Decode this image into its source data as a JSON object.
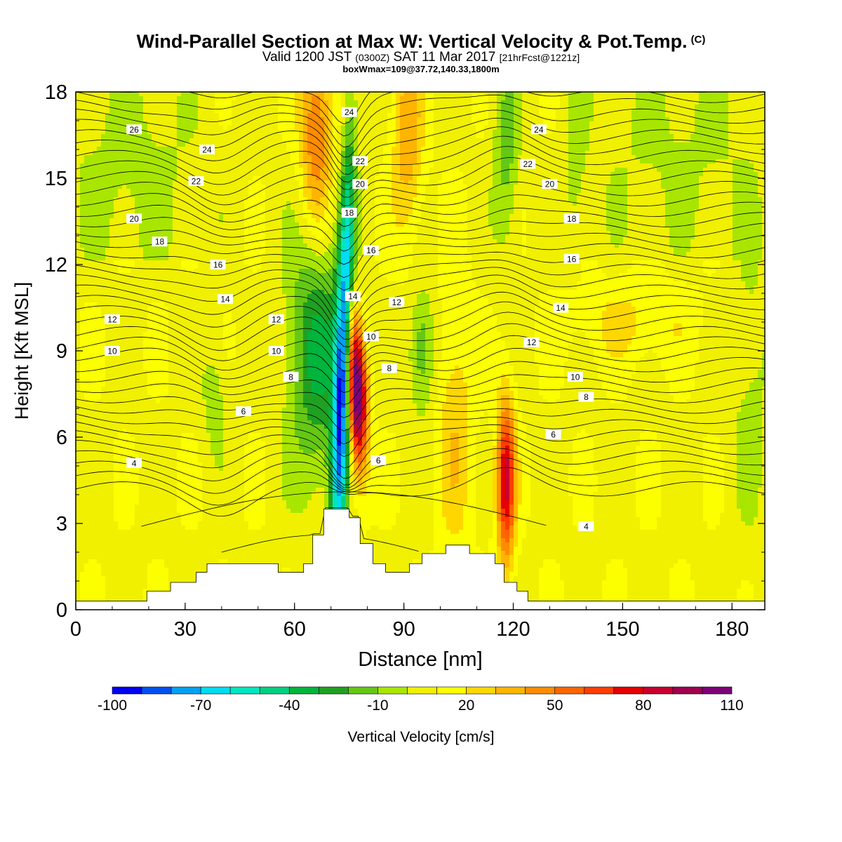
{
  "header": {
    "title": "Wind-Parallel Section at Max W: Vertical Velocity & Pot.Temp.",
    "copyright_mark": "(C)",
    "valid_prefix": "Valid 1200 JST",
    "valid_utc": "(0300Z)",
    "valid_date": "SAT 11 Mar 2017",
    "forecast_info": "[21hrFcst@1221z]",
    "box_info": "boxWmax=109@37.72,140.33,1800m"
  },
  "colorbar": {
    "label": "Vertical Velocity [cm/s]",
    "tick_labels": [
      "-100",
      "-70",
      "-40",
      "-10",
      "20",
      "50",
      "80",
      "110"
    ],
    "bins": [
      {
        "lo": -100,
        "hi": -90,
        "color": "#0000f0"
      },
      {
        "lo": -90,
        "hi": -80,
        "color": "#0050f0"
      },
      {
        "lo": -80,
        "hi": -70,
        "color": "#00a0f0"
      },
      {
        "lo": -70,
        "hi": -60,
        "color": "#00dcf0"
      },
      {
        "lo": -60,
        "hi": -50,
        "color": "#00e6c0"
      },
      {
        "lo": -50,
        "hi": -40,
        "color": "#00d080"
      },
      {
        "lo": -40,
        "hi": -30,
        "color": "#00b43c"
      },
      {
        "lo": -30,
        "hi": -20,
        "color": "#20a020"
      },
      {
        "lo": -20,
        "hi": -10,
        "color": "#64c814"
      },
      {
        "lo": -10,
        "hi": 0,
        "color": "#a8e600"
      },
      {
        "lo": 0,
        "hi": 10,
        "color": "#f0f000"
      },
      {
        "lo": 10,
        "hi": 20,
        "color": "#fcff00"
      },
      {
        "lo": 20,
        "hi": 30,
        "color": "#ffd700"
      },
      {
        "lo": 30,
        "hi": 40,
        "color": "#ffb400"
      },
      {
        "lo": 40,
        "hi": 50,
        "color": "#ff8c00"
      },
      {
        "lo": 50,
        "hi": 60,
        "color": "#ff6400"
      },
      {
        "lo": 60,
        "hi": 70,
        "color": "#ff3c00"
      },
      {
        "lo": 70,
        "hi": 80,
        "color": "#e60000"
      },
      {
        "lo": 80,
        "hi": 90,
        "color": "#c8002d"
      },
      {
        "lo": 90,
        "hi": 100,
        "color": "#a00050"
      },
      {
        "lo": 100,
        "hi": 110,
        "color": "#7d0078"
      }
    ]
  },
  "chart_data": {
    "type": "heatmap",
    "xlabel": "Distance [nm]",
    "ylabel": "Height [Kft MSL]",
    "xlim": [
      0,
      189
    ],
    "ylim": [
      0,
      18
    ],
    "x_ticks": [
      0,
      30,
      60,
      90,
      120,
      150,
      180
    ],
    "y_ticks": [
      0,
      3,
      6,
      9,
      12,
      15,
      18
    ],
    "field": "vertical velocity [cm/s], filled contours; potential temperature contours labeled",
    "max_w": 109,
    "updraft_core": {
      "distance_nm": 79,
      "height_kft": 7.5,
      "w_cms": 105
    },
    "downdraft_core": {
      "distance_nm": 75,
      "height_kft": 6,
      "w_cms": -85
    },
    "terrain_profile": [
      [
        0,
        0.3
      ],
      [
        19.5,
        0.3
      ],
      [
        19.5,
        0.65
      ],
      [
        26,
        0.65
      ],
      [
        26,
        0.95
      ],
      [
        33,
        0.95
      ],
      [
        33,
        1.3
      ],
      [
        36,
        1.3
      ],
      [
        36,
        1.6
      ],
      [
        55.5,
        1.6
      ],
      [
        55.5,
        1.3
      ],
      [
        62.5,
        1.3
      ],
      [
        62.5,
        1.6
      ],
      [
        65,
        1.6
      ],
      [
        65,
        2.6
      ],
      [
        68,
        2.6
      ],
      [
        68,
        3.5
      ],
      [
        75,
        3.5
      ],
      [
        75,
        3.2
      ],
      [
        78,
        3.2
      ],
      [
        78,
        2.3
      ],
      [
        81.5,
        2.3
      ],
      [
        81.5,
        1.6
      ],
      [
        85,
        1.6
      ],
      [
        85,
        1.3
      ],
      [
        91.5,
        1.3
      ],
      [
        91.5,
        1.6
      ],
      [
        95,
        1.6
      ],
      [
        95,
        1.95
      ],
      [
        101.5,
        1.95
      ],
      [
        101.5,
        2.25
      ],
      [
        108,
        2.25
      ],
      [
        108,
        1.95
      ],
      [
        115,
        1.95
      ],
      [
        115,
        1.6
      ],
      [
        117.5,
        1.6
      ],
      [
        117.5,
        0.95
      ],
      [
        121,
        0.95
      ],
      [
        121,
        0.65
      ],
      [
        124,
        0.65
      ],
      [
        124,
        0.3
      ],
      [
        189,
        0.3
      ]
    ],
    "theta_labels": [
      {
        "text": "26",
        "x": 16,
        "y": 16.7
      },
      {
        "text": "24",
        "x": 36,
        "y": 16.0
      },
      {
        "text": "22",
        "x": 33,
        "y": 14.9
      },
      {
        "text": "20",
        "x": 16,
        "y": 13.6
      },
      {
        "text": "18",
        "x": 23,
        "y": 12.8
      },
      {
        "text": "16",
        "x": 39,
        "y": 12.0
      },
      {
        "text": "14",
        "x": 41,
        "y": 10.8
      },
      {
        "text": "12",
        "x": 10,
        "y": 10.1
      },
      {
        "text": "12",
        "x": 55,
        "y": 10.1
      },
      {
        "text": "10",
        "x": 10,
        "y": 9.0
      },
      {
        "text": "10",
        "x": 55,
        "y": 9.0
      },
      {
        "text": "8",
        "x": 59,
        "y": 8.1
      },
      {
        "text": "6",
        "x": 46,
        "y": 6.9
      },
      {
        "text": "4",
        "x": 16,
        "y": 5.1
      },
      {
        "text": "24",
        "x": 75,
        "y": 17.3
      },
      {
        "text": "22",
        "x": 78,
        "y": 15.6
      },
      {
        "text": "20",
        "x": 78,
        "y": 14.8
      },
      {
        "text": "18",
        "x": 75,
        "y": 13.8
      },
      {
        "text": "16",
        "x": 81,
        "y": 12.5
      },
      {
        "text": "14",
        "x": 76,
        "y": 10.9
      },
      {
        "text": "12",
        "x": 88,
        "y": 10.7
      },
      {
        "text": "10",
        "x": 81,
        "y": 9.5
      },
      {
        "text": "8",
        "x": 86,
        "y": 8.4
      },
      {
        "text": "6",
        "x": 83,
        "y": 5.2
      },
      {
        "text": "24",
        "x": 127,
        "y": 16.7
      },
      {
        "text": "22",
        "x": 124,
        "y": 15.5
      },
      {
        "text": "20",
        "x": 130,
        "y": 14.8
      },
      {
        "text": "18",
        "x": 136,
        "y": 13.6
      },
      {
        "text": "16",
        "x": 136,
        "y": 12.2
      },
      {
        "text": "14",
        "x": 133,
        "y": 10.5
      },
      {
        "text": "12",
        "x": 125,
        "y": 9.3
      },
      {
        "text": "10",
        "x": 137,
        "y": 8.1
      },
      {
        "text": "8",
        "x": 140,
        "y": 7.4
      },
      {
        "text": "6",
        "x": 131,
        "y": 6.1
      },
      {
        "text": "4",
        "x": 140,
        "y": 2.9
      }
    ]
  }
}
